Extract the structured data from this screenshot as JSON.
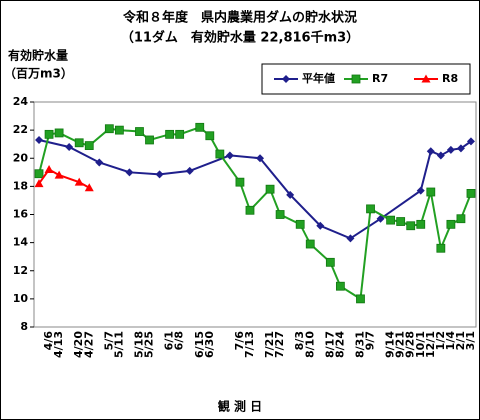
{
  "chart_data": {
    "type": "line",
    "title": "令和８年度　県内農業用ダムの貯水状況",
    "subtitle": "（11ダム　有効貯水量 22,816千m3）",
    "y_label": [
      "有効貯水量",
      "（百万m3）"
    ],
    "x_label": "観 測 日",
    "categories": [
      null,
      "4/6",
      "4/13",
      null,
      "4/20",
      "4/27",
      null,
      "5/7",
      "5/11",
      null,
      "5/18",
      "5/25",
      null,
      "6/1",
      "6/8",
      null,
      "6/15",
      "6/30",
      null,
      null,
      "7/6",
      "7/13",
      null,
      "7/21",
      "7/27",
      null,
      "8/3",
      "8/10",
      null,
      "8/17",
      "8/24",
      null,
      "8/31",
      "9/7",
      null,
      "9/14",
      "9/21",
      "9/28",
      "10/1",
      "12/1",
      "1/2",
      "1/4",
      "2/1",
      "3/1"
    ],
    "series": [
      {
        "name": "平年値",
        "color": "#1f1f8c",
        "marker": "diamond",
        "values": [
          21.3,
          null,
          null,
          20.8,
          null,
          null,
          19.7,
          null,
          null,
          19.0,
          null,
          null,
          18.85,
          null,
          null,
          19.1,
          null,
          null,
          null,
          20.2,
          null,
          null,
          20.0,
          null,
          null,
          17.4,
          null,
          null,
          15.2,
          null,
          null,
          14.3,
          null,
          null,
          15.7,
          null,
          null,
          null,
          17.7,
          20.5,
          20.2,
          20.6,
          20.7,
          21.2
        ]
      },
      {
        "name": "R7",
        "color": "#22a022",
        "marker": "square",
        "values": [
          18.9,
          21.7,
          21.8,
          null,
          21.1,
          20.9,
          null,
          22.1,
          22.0,
          null,
          21.9,
          21.3,
          null,
          21.7,
          21.7,
          null,
          22.2,
          21.6,
          20.3,
          null,
          18.3,
          16.3,
          null,
          17.8,
          16.0,
          null,
          15.3,
          13.9,
          null,
          12.6,
          10.9,
          null,
          10.0,
          16.4,
          null,
          15.6,
          15.5,
          15.2,
          15.3,
          17.6,
          13.6,
          15.3,
          15.7,
          17.5
        ]
      },
      {
        "name": "R8",
        "color": "#ff0000",
        "marker": "triangle",
        "values": [
          18.2,
          19.2,
          18.8,
          null,
          18.3,
          17.9,
          null,
          null,
          null,
          null,
          null,
          null,
          null,
          null,
          null,
          null,
          null,
          null,
          null,
          null,
          null,
          null,
          null,
          null,
          null,
          null,
          null,
          null,
          null,
          null,
          null,
          null,
          null,
          null,
          null,
          null,
          null,
          null,
          null,
          null,
          null,
          null,
          null,
          null
        ]
      }
    ],
    "ylim": [
      8,
      24
    ],
    "yticks": [
      8,
      10,
      12,
      14,
      16,
      18,
      20,
      22,
      24
    ],
    "connect_gaps": true,
    "grid": false,
    "legend": "top-right"
  }
}
